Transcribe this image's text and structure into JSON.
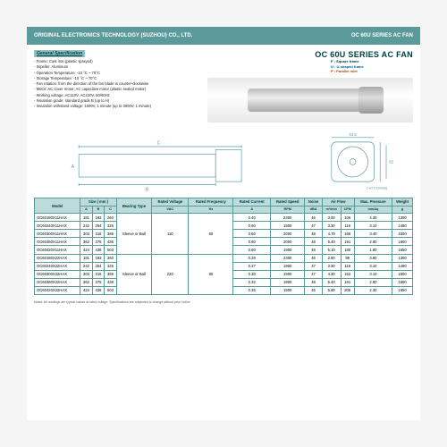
{
  "header": {
    "company": "ORIGINAL ELECTRONICS TECHNOLOGY (SUZHOU) CO., LTD.",
    "series": "OC 60U SERIES AC FAN"
  },
  "spec": {
    "title": "General Specification",
    "items": [
      "Frame: Cast iron (plastic sprayed)",
      "Impeller: Aluminum",
      "Operation Temperature: -10 °C ~ 70°C",
      "Storage Temperature: -10 °C ~ 70°C",
      "Fan rotation: from the direction of the fan blade is counter-clockwise",
      "Motor: AC cover motor; AC capacitive motor (plastic sealed motor)",
      "Working voltage: AC110V, AC220V, 50/60Hz",
      "Insulation grade: standard grade B (up to H)",
      "Insulation withstand voltage: 1500V, 1 minute (up to 3000V, 1 minute)"
    ]
  },
  "title_right": "OC 60U SERIES AC FAN",
  "legend": {
    "f": "F : Square frame",
    "u": "U : U-shaped frame",
    "p": "P : Parallel inlet"
  },
  "diag": {
    "dim_c": "C",
    "dim_b": "B",
    "dim_a": "A",
    "dim_54": "54.5",
    "dim_635": "63.5",
    "dim_66": "66",
    "dim_82": "82",
    "note": "2-ø3.5 Earthing"
  },
  "table": {
    "head1": [
      "Model",
      "Size ( mm )",
      "Bearing Type",
      "Rated Voltage",
      "Rated Frequency",
      "Rated Current",
      "Rated Speed",
      "Noise",
      "Air Flow",
      "Max. Pressure",
      "Weight"
    ],
    "head2": [
      "A",
      "B",
      "C",
      "",
      "VAC",
      "Hz",
      "A",
      "RPM",
      "dBA",
      "m³/min",
      "CFM",
      "mmAq",
      "g"
    ],
    "bearing_label": "Sleeve or Ball",
    "volt1": "110",
    "freq1": "60",
    "volt2": "220",
    "freq2": "50",
    "rows": [
      [
        "OC60180X11HAX",
        "181",
        "183",
        "260",
        "0.40",
        "2300",
        "46",
        "3.00",
        "106",
        "4.30",
        "1300"
      ],
      [
        "OC60240X11HAX",
        "242",
        "254",
        "325",
        "0.60",
        "1900",
        "47",
        "3.30",
        "116",
        "3.10",
        "1490"
      ],
      [
        "OC60300X11HAX",
        "303",
        "316",
        "386",
        "0.60",
        "2000",
        "48",
        "4.70",
        "166",
        "3.40",
        "1500"
      ],
      [
        "OC60360X11HAX",
        "362",
        "375",
        "436",
        "0.60",
        "2000",
        "48",
        "5.40",
        "191",
        "2.80",
        "1600"
      ],
      [
        "OC60420X11HAX",
        "424",
        "436",
        "503",
        "0.60",
        "1900",
        "48",
        "5.10",
        "180",
        "1.80",
        "1650"
      ],
      [
        "OC60180X22HAX",
        "181",
        "183",
        "260",
        "0.26",
        "2300",
        "46",
        "2.80",
        "99",
        "3.90",
        "1300"
      ],
      [
        "OC60240X22HAX",
        "242",
        "254",
        "325",
        "0.27",
        "1900",
        "47",
        "3.30",
        "116",
        "3.10",
        "1490"
      ],
      [
        "OC60300X22HAX",
        "303",
        "316",
        "386",
        "0.30",
        "1900",
        "47",
        "4.30",
        "152",
        "3.10",
        "1500"
      ],
      [
        "OC60360X22HAX",
        "362",
        "375",
        "436",
        "0.32",
        "1900",
        "48",
        "5.40",
        "191",
        "2.80",
        "1600"
      ],
      [
        "OC60420X22HAX",
        "424",
        "436",
        "503",
        "0.35",
        "1900",
        "45",
        "5.80",
        "205",
        "2.30",
        "1650"
      ]
    ]
  },
  "footnote": "Notes: All readings are typical values at rated voltage. Specifications are subjected to change without prior notice."
}
